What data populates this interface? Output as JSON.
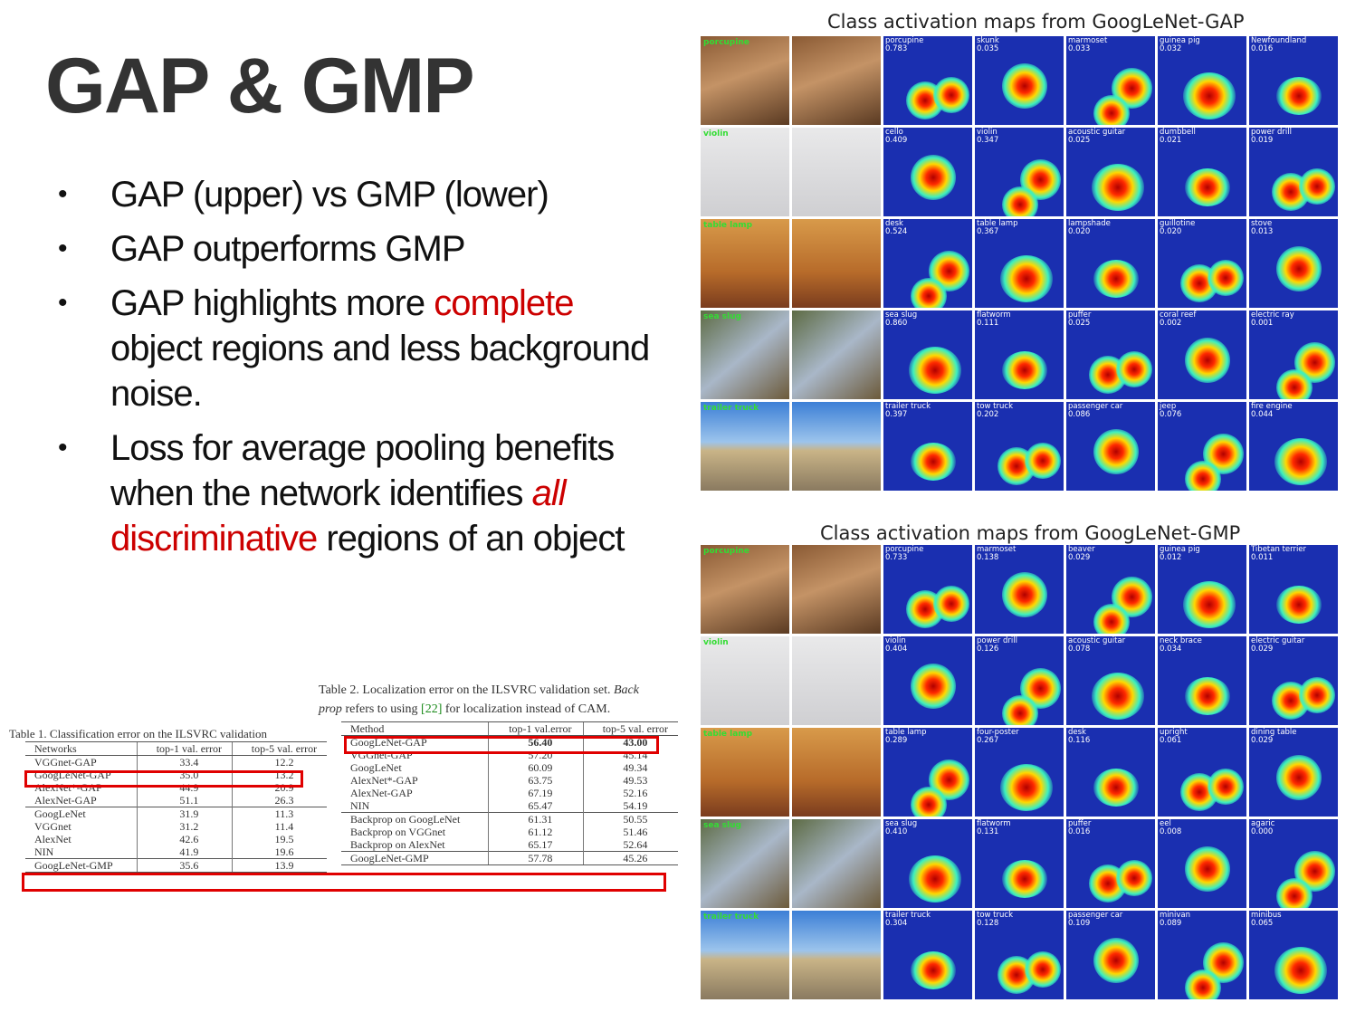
{
  "title": "GAP & GMP",
  "bullets": [
    {
      "text": "GAP (upper) vs GMP (lower)"
    },
    {
      "text": "GAP outperforms GMP"
    },
    {
      "before": "GAP highlights more ",
      "red": "complete",
      "after": " object regions and less background noise."
    },
    {
      "before": "Loss for average pooling benefits when the network identifies ",
      "red_italic": "all",
      "red": " discriminative",
      "after": " regions of an object"
    }
  ],
  "bullet_symbol": "•",
  "table1": {
    "caption": "Table 1. Classification error on the ILSVRC validation",
    "headers": [
      "Networks",
      "top-1 val. error",
      "top-5 val. error"
    ],
    "rows": [
      [
        "VGGnet-GAP",
        "33.4",
        "12.2"
      ],
      [
        "GoogLeNet-GAP",
        "35.0",
        "13.2"
      ],
      [
        "AlexNet*-GAP",
        "44.9",
        "20.9"
      ],
      [
        "AlexNet-GAP",
        "51.1",
        "26.3"
      ],
      [
        "GoogLeNet",
        "31.9",
        "11.3"
      ],
      [
        "VGGnet",
        "31.2",
        "11.4"
      ],
      [
        "AlexNet",
        "42.6",
        "19.5"
      ],
      [
        "NIN",
        "41.9",
        "19.6"
      ],
      [
        "GoogLeNet-GMP",
        "35.6",
        "13.9"
      ]
    ]
  },
  "table2": {
    "caption_line1_a": "Table 2. Localization error on the ILSVRC validation set. ",
    "caption_line1_b": "Back",
    "caption_line2_a": "prop",
    "caption_line2_b": " refers to using ",
    "caption_ref": "[22]",
    "caption_line2_c": " for localization instead of CAM.",
    "headers": [
      "Method",
      "top-1 val.error",
      "top-5 val. error"
    ],
    "rows": [
      [
        "GoogLeNet-GAP",
        "56.40",
        "43.00"
      ],
      [
        "VGGnet-GAP",
        "57.20",
        "45.14"
      ],
      [
        "GoogLeNet",
        "60.09",
        "49.34"
      ],
      [
        "AlexNet*-GAP",
        "63.75",
        "49.53"
      ],
      [
        "AlexNet-GAP",
        "67.19",
        "52.16"
      ],
      [
        "NIN",
        "65.47",
        "54.19"
      ],
      [
        "Backprop on GoogLeNet",
        "61.31",
        "50.55"
      ],
      [
        "Backprop on VGGnet",
        "61.12",
        "51.46"
      ],
      [
        "Backprop on AlexNet",
        "65.17",
        "52.64"
      ],
      [
        "GoogLeNet-GMP",
        "57.78",
        "45.26"
      ]
    ]
  },
  "gap_panel": {
    "title": "Class activation maps from GoogLeNet-GAP",
    "rows": [
      {
        "label": "porcupine",
        "photo": "porc",
        "maps": [
          [
            "porcupine",
            "0.783"
          ],
          [
            "skunk",
            "0.035"
          ],
          [
            "marmoset",
            "0.033"
          ],
          [
            "guinea pig",
            "0.032"
          ],
          [
            "Newfoundland",
            "0.016"
          ]
        ]
      },
      {
        "label": "violin",
        "photo": "violin",
        "maps": [
          [
            "cello",
            "0.409"
          ],
          [
            "violin",
            "0.347"
          ],
          [
            "acoustic guitar",
            "0.025"
          ],
          [
            "dumbbell",
            "0.021"
          ],
          [
            "power drill",
            "0.019"
          ]
        ]
      },
      {
        "label": "table lamp",
        "photo": "lamp",
        "maps": [
          [
            "desk",
            "0.524"
          ],
          [
            "table lamp",
            "0.367"
          ],
          [
            "lampshade",
            "0.020"
          ],
          [
            "guillotine",
            "0.020"
          ],
          [
            "stove",
            "0.013"
          ]
        ]
      },
      {
        "label": "sea slug",
        "photo": "slug",
        "maps": [
          [
            "sea slug",
            "0.860"
          ],
          [
            "flatworm",
            "0.111"
          ],
          [
            "puffer",
            "0.025"
          ],
          [
            "coral reef",
            "0.002"
          ],
          [
            "electric ray",
            "0.001"
          ]
        ]
      },
      {
        "label": "trailer truck",
        "photo": "truck",
        "maps": [
          [
            "trailer truck",
            "0.397"
          ],
          [
            "tow truck",
            "0.202"
          ],
          [
            "passenger car",
            "0.086"
          ],
          [
            "jeep",
            "0.076"
          ],
          [
            "fire engine",
            "0.044"
          ]
        ]
      }
    ]
  },
  "gmp_panel": {
    "title": "Class activation maps from GoogLeNet-GMP",
    "rows": [
      {
        "label": "porcupine",
        "photo": "porc",
        "maps": [
          [
            "porcupine",
            "0.733"
          ],
          [
            "marmoset",
            "0.138"
          ],
          [
            "beaver",
            "0.029"
          ],
          [
            "guinea pig",
            "0.012"
          ],
          [
            "Tibetan terrier",
            "0.011"
          ]
        ]
      },
      {
        "label": "violin",
        "photo": "violin",
        "maps": [
          [
            "violin",
            "0.404"
          ],
          [
            "power drill",
            "0.126"
          ],
          [
            "acoustic guitar",
            "0.078"
          ],
          [
            "neck brace",
            "0.034"
          ],
          [
            "electric guitar",
            "0.029"
          ]
        ]
      },
      {
        "label": "table lamp",
        "photo": "lamp",
        "maps": [
          [
            "table lamp",
            "0.289"
          ],
          [
            "four-poster",
            "0.267"
          ],
          [
            "desk",
            "0.116"
          ],
          [
            "upright",
            "0.061"
          ],
          [
            "dining table",
            "0.029"
          ]
        ]
      },
      {
        "label": "sea slug",
        "photo": "slug",
        "maps": [
          [
            "sea slug",
            "0.410"
          ],
          [
            "flatworm",
            "0.131"
          ],
          [
            "puffer",
            "0.016"
          ],
          [
            "eel",
            "0.008"
          ],
          [
            "agaric",
            "0.000"
          ]
        ]
      },
      {
        "label": "trailer truck",
        "photo": "truck",
        "maps": [
          [
            "trailer truck",
            "0.304"
          ],
          [
            "tow truck",
            "0.128"
          ],
          [
            "passenger car",
            "0.109"
          ],
          [
            "minivan",
            "0.089"
          ],
          [
            "minibus",
            "0.065"
          ]
        ]
      }
    ]
  },
  "highlight_color": "#e00000"
}
